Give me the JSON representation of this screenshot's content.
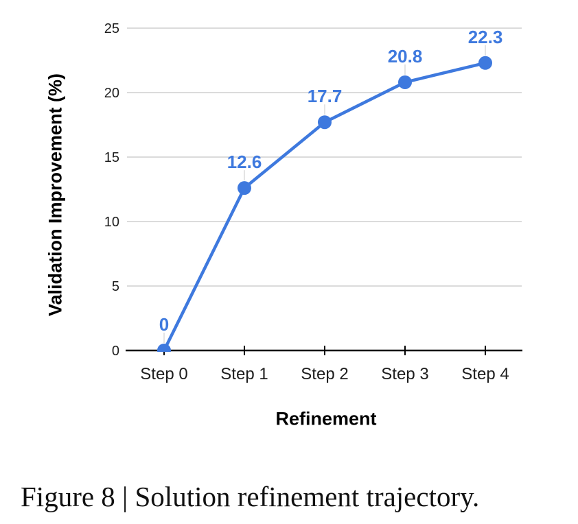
{
  "figure": {
    "caption": "Figure 8 | Solution refinement trajectory."
  },
  "chart_data": {
    "type": "line",
    "title": "",
    "categories": [
      "Step 0",
      "Step 1",
      "Step 2",
      "Step 3",
      "Step 4"
    ],
    "series": [
      {
        "name": "Validation Improvement",
        "values": [
          0,
          12.6,
          17.7,
          20.8,
          22.3
        ]
      }
    ],
    "point_labels": [
      "0",
      "12.6",
      "17.7",
      "20.8",
      "22.3"
    ],
    "xlabel": "Refinement",
    "ylabel": "Validation Improvement (%)",
    "ylim": [
      0,
      25
    ],
    "yticks": [
      0,
      5,
      10,
      15,
      20,
      25
    ],
    "ytick_labels": [
      "0",
      "5",
      "10",
      "15",
      "20",
      "25"
    ],
    "grid": true,
    "legend": "none",
    "colors": {
      "series": "#3E79DE",
      "gridline": "#D6D6D6",
      "axis": "#000000",
      "tick_label": "#1E1E1E",
      "leader": "#DEDEDE"
    }
  }
}
